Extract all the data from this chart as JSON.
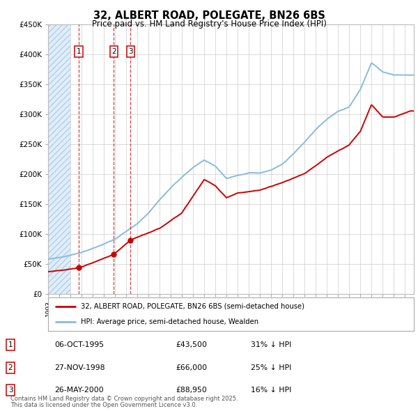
{
  "title": "32, ALBERT ROAD, POLEGATE, BN26 6BS",
  "subtitle": "Price paid vs. HM Land Registry's House Price Index (HPI)",
  "legend_property": "32, ALBERT ROAD, POLEGATE, BN26 6BS (semi-detached house)",
  "legend_hpi": "HPI: Average price, semi-detached house, Wealden",
  "sales": [
    {
      "label": "1",
      "date": "06-OCT-1995",
      "price": 43500,
      "year": 1995.76,
      "pct": "31%",
      "dir": "↓"
    },
    {
      "label": "2",
      "date": "27-NOV-1998",
      "price": 66000,
      "year": 1998.9,
      "pct": "25%",
      "dir": "↓"
    },
    {
      "label": "3",
      "date": "26-MAY-2000",
      "price": 88950,
      "year": 2000.4,
      "pct": "16%",
      "dir": "↓"
    }
  ],
  "footnote1": "Contains HM Land Registry data © Crown copyright and database right 2025.",
  "footnote2": "This data is licensed under the Open Government Licence v3.0.",
  "ylim": [
    0,
    450000
  ],
  "xlim_start": 1993.0,
  "xlim_end": 2025.8,
  "hatch_end": 1995.0,
  "property_color": "#cc0000",
  "hpi_color": "#88bbdd",
  "hatch_color": "#ddeeff",
  "plot_bg": "#ffffff",
  "hpi_waypoints_x": [
    1993,
    1994,
    1995,
    1996,
    1997,
    1998,
    1999,
    2000,
    2001,
    2002,
    2003,
    2004,
    2005,
    2006,
    2007,
    2008,
    2009,
    2010,
    2011,
    2012,
    2013,
    2014,
    2015,
    2016,
    2017,
    2018,
    2019,
    2020,
    2021,
    2022,
    2023,
    2024,
    2025.5
  ],
  "hpi_waypoints_y": [
    58000,
    61000,
    65000,
    70000,
    76000,
    83000,
    92000,
    105000,
    118000,
    136000,
    158000,
    178000,
    196000,
    212000,
    225000,
    215000,
    195000,
    200000,
    205000,
    205000,
    210000,
    220000,
    238000,
    258000,
    278000,
    295000,
    308000,
    315000,
    345000,
    390000,
    375000,
    370000,
    370000
  ],
  "prop_waypoints_x": [
    1993,
    1995.76,
    1998.9,
    2000.4,
    2003,
    2005,
    2007,
    2008,
    2009,
    2010,
    2012,
    2014,
    2016,
    2018,
    2020,
    2021,
    2022,
    2023,
    2024,
    2025.5
  ],
  "prop_waypoints_y": [
    37000,
    43500,
    66000,
    88950,
    108000,
    135000,
    190000,
    180000,
    160000,
    168000,
    172000,
    185000,
    200000,
    228000,
    248000,
    270000,
    315000,
    295000,
    295000,
    305000
  ]
}
